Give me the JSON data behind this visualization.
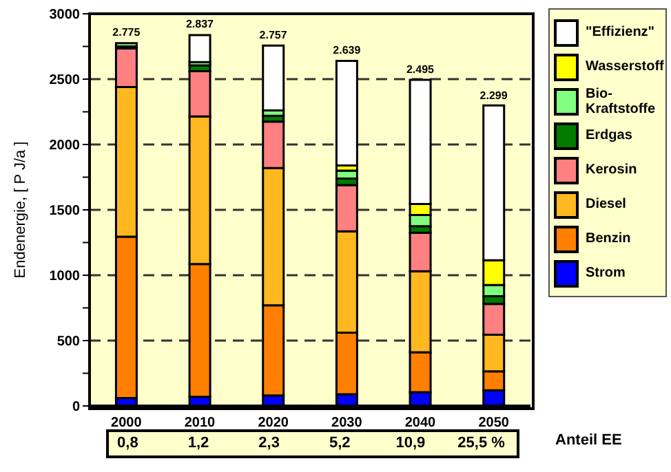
{
  "chart_data": {
    "type": "bar",
    "stacked": true,
    "ylabel": "Endenergie, [ P J/a ]",
    "categories": [
      "2000",
      "2010",
      "2020",
      "2030",
      "2040",
      "2050"
    ],
    "series": [
      {
        "name": "Strom",
        "color": "#0000ff",
        "values": [
          60,
          70,
          80,
          90,
          105,
          120
        ]
      },
      {
        "name": "Benzin",
        "color": "#ff8000",
        "values": [
          1235,
          1015,
          690,
          470,
          305,
          145
        ]
      },
      {
        "name": "Diesel",
        "color": "#ffb820",
        "values": [
          1145,
          1130,
          1050,
          775,
          620,
          280
        ]
      },
      {
        "name": "Kerosin",
        "color": "#ff8080",
        "values": [
          295,
          345,
          355,
          355,
          295,
          235
        ]
      },
      {
        "name": "Erdgas",
        "color": "#007a00",
        "values": [
          15,
          45,
          45,
          50,
          50,
          60
        ]
      },
      {
        "name": "Bio-Kraftstoffe",
        "color": "#80ff80",
        "values": [
          25,
          25,
          40,
          60,
          85,
          85
        ]
      },
      {
        "name": "Wasserstoff",
        "color": "#ffff00",
        "values": [
          0,
          0,
          0,
          40,
          85,
          190
        ]
      },
      {
        "name": "\"Effizienz\"",
        "color": "#ffffff",
        "values": [
          0,
          207,
          497,
          799,
          950,
          1184
        ]
      }
    ],
    "totals": [
      "2.775",
      "2.837",
      "2.757",
      "2.639",
      "2.495",
      "2.299"
    ],
    "ylim": [
      0,
      3000
    ],
    "yticks": [
      0,
      {
        "value": 250,
        "label": null
      },
      500,
      {
        "value": 750,
        "label": null
      },
      1000,
      {
        "value": 1250,
        "label": null
      },
      1500,
      {
        "value": 1750,
        "label": null
      },
      2000,
      {
        "value": 2250,
        "label": null
      },
      2500,
      {
        "value": 2750,
        "label": null
      },
      3000
    ],
    "grid": "y",
    "legend": "right",
    "annotations": [
      "Anteil EE",
      "0,8",
      "1,2",
      "2,3",
      "5,2",
      "10,9",
      "25,5 %"
    ]
  }
}
